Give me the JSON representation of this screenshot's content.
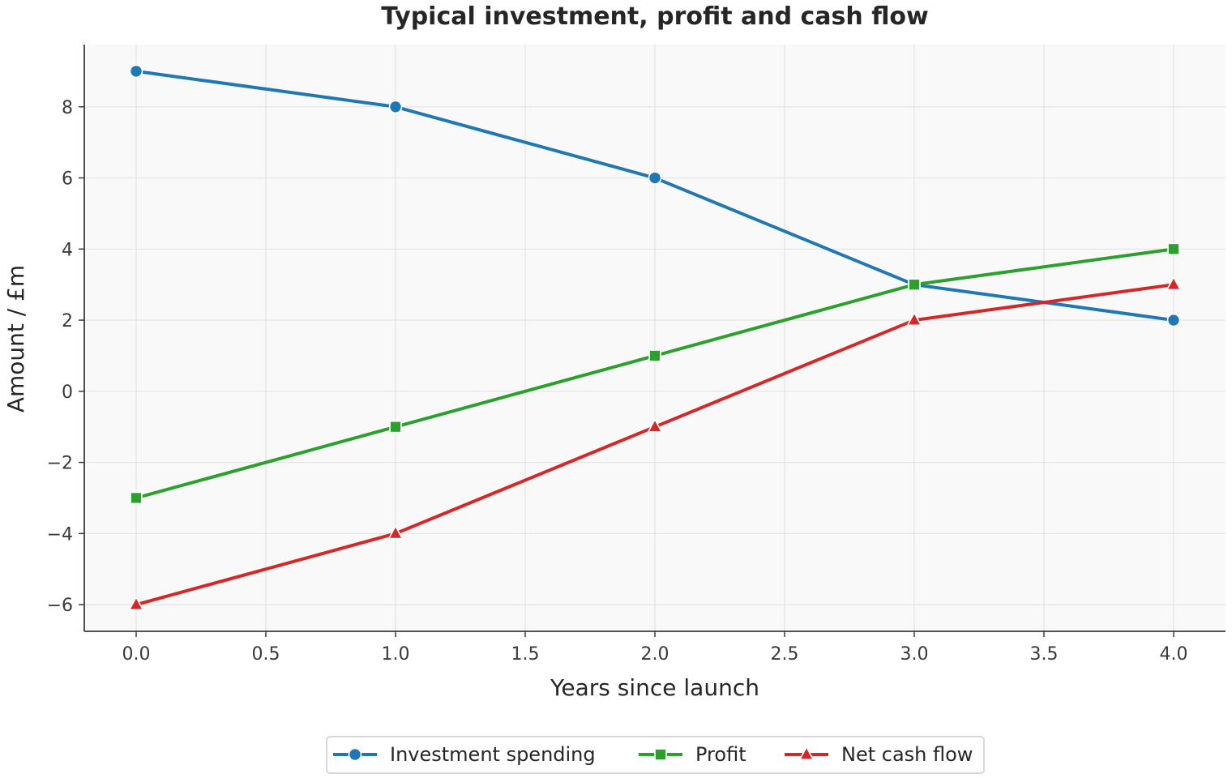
{
  "chart_data": {
    "type": "line",
    "title": "Typical investment, profit and cash flow",
    "xlabel": "Years since launch",
    "ylabel": "Amount / £m",
    "x": [
      0,
      1,
      2,
      3,
      4
    ],
    "xlim": [
      -0.2,
      4.2
    ],
    "ylim": [
      -6.75,
      9.75
    ],
    "xticks": [
      0.0,
      0.5,
      1.0,
      1.5,
      2.0,
      2.5,
      3.0,
      3.5,
      4.0
    ],
    "xtick_labels": [
      "0.0",
      "0.5",
      "1.0",
      "1.5",
      "2.0",
      "2.5",
      "3.0",
      "3.5",
      "4.0"
    ],
    "yticks": [
      -6,
      -4,
      -2,
      0,
      2,
      4,
      6,
      8
    ],
    "ytick_labels": [
      "−6",
      "−4",
      "−2",
      "0",
      "2",
      "4",
      "6",
      "8"
    ],
    "grid": true,
    "legend_position": "bottom-center",
    "series": [
      {
        "name": "Investment spending",
        "values": [
          9,
          8,
          6,
          3,
          2
        ],
        "color": "#1f77b4",
        "marker": "circle"
      },
      {
        "name": "Profit",
        "values": [
          -3,
          -1,
          1,
          3,
          4
        ],
        "color": "#2ca02c",
        "marker": "square"
      },
      {
        "name": "Net cash flow",
        "values": [
          -6,
          -4,
          -1,
          2,
          3
        ],
        "color": "#d62728",
        "marker": "triangle"
      }
    ]
  }
}
